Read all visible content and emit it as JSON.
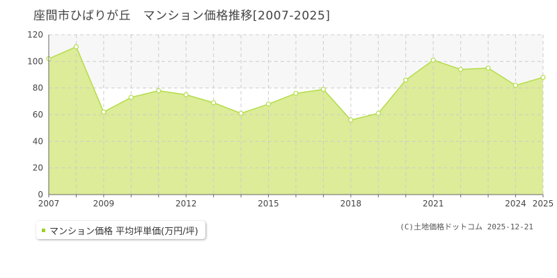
{
  "page": {
    "title": "座間市ひばりが丘　マンション価格推移[2007-2025]",
    "copyright": "(C)土地価格ドットコム 2025-12-21"
  },
  "colors": {
    "area_fill": "#dcec98",
    "line": "#b4dc4a",
    "grid": "#cccccc",
    "band": "#f7f7f7",
    "axis": "#666666"
  },
  "chart_data": {
    "type": "area",
    "title": "座間市ひばりが丘　マンション価格推移[2007-2025]",
    "xlabel": "",
    "ylabel": "",
    "xlim": [
      2007,
      2025
    ],
    "ylim": [
      0,
      120
    ],
    "y_ticks": [
      "0",
      "20",
      "40",
      "60",
      "80",
      "100",
      "120"
    ],
    "x_tick_labels": [
      "2007",
      "2009",
      "2012",
      "2015",
      "2018",
      "2021",
      "2024",
      "2025"
    ],
    "grid": true,
    "legend_position": "bottom-left",
    "series": [
      {
        "name": "マンション価格 平均坪単価(万円/坪)",
        "x": [
          2007,
          2008,
          2009,
          2010,
          2011,
          2012,
          2013,
          2014,
          2015,
          2016,
          2017,
          2018,
          2019,
          2020,
          2021,
          2022,
          2023,
          2024,
          2025
        ],
        "values": [
          102,
          111,
          62,
          73,
          78,
          75,
          69,
          61,
          68,
          76,
          79,
          56,
          61,
          86,
          101,
          94,
          95,
          82,
          88
        ]
      }
    ]
  }
}
